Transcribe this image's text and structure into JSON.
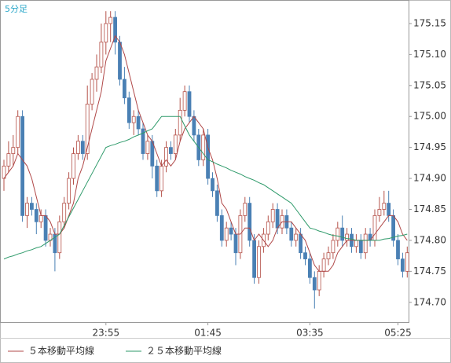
{
  "chart_data": {
    "type": "candlestick",
    "label": "5分足",
    "categories": [
      null,
      null,
      null,
      null,
      null,
      null,
      null,
      null,
      null,
      null,
      null,
      null,
      null,
      null,
      null,
      null,
      null,
      null,
      null,
      null,
      null,
      null,
      "23:55",
      null,
      null,
      null,
      null,
      null,
      null,
      null,
      null,
      null,
      null,
      null,
      null,
      null,
      null,
      null,
      null,
      null,
      null,
      null,
      null,
      null,
      "01:45",
      null,
      null,
      null,
      null,
      null,
      null,
      null,
      null,
      null,
      null,
      null,
      null,
      null,
      null,
      null,
      null,
      null,
      null,
      null,
      null,
      null,
      "03:35",
      null,
      null,
      null,
      null,
      null,
      null,
      null,
      null,
      null,
      null,
      null,
      null,
      null,
      null,
      null,
      null,
      null,
      null,
      "05:25",
      null,
      null
    ],
    "ohlc": [
      [
        174.9,
        174.93,
        174.88,
        174.92
      ],
      [
        174.92,
        174.96,
        174.91,
        174.94
      ],
      [
        174.94,
        174.97,
        174.92,
        174.95
      ],
      [
        174.95,
        175.01,
        174.94,
        175.0
      ],
      [
        175.0,
        175.01,
        174.83,
        174.84
      ],
      [
        174.84,
        174.87,
        174.82,
        174.86
      ],
      [
        174.86,
        174.87,
        174.84,
        174.85
      ],
      [
        174.85,
        174.86,
        174.81,
        174.83
      ],
      [
        174.83,
        174.85,
        174.82,
        174.84
      ],
      [
        174.84,
        174.85,
        174.79,
        174.8
      ],
      [
        174.8,
        174.82,
        174.79,
        174.81
      ],
      [
        174.81,
        174.82,
        174.75,
        174.78
      ],
      [
        174.78,
        174.84,
        174.77,
        174.83
      ],
      [
        174.83,
        174.87,
        174.82,
        174.86
      ],
      [
        174.86,
        174.91,
        174.85,
        174.9
      ],
      [
        174.9,
        174.95,
        174.89,
        174.94
      ],
      [
        174.94,
        174.97,
        174.93,
        174.96
      ],
      [
        174.96,
        174.97,
        174.93,
        174.94
      ],
      [
        174.94,
        175.05,
        174.93,
        175.02
      ],
      [
        175.02,
        175.07,
        175.01,
        175.06
      ],
      [
        175.06,
        175.1,
        175.04,
        175.08
      ],
      [
        175.08,
        175.15,
        175.07,
        175.12
      ],
      [
        175.12,
        175.17,
        175.1,
        175.15
      ],
      [
        175.15,
        175.17,
        175.12,
        175.16
      ],
      [
        175.16,
        175.17,
        175.1,
        175.12
      ],
      [
        175.12,
        175.13,
        175.05,
        175.06
      ],
      [
        175.06,
        175.08,
        175.02,
        175.03
      ],
      [
        175.03,
        175.04,
        174.98,
        174.99
      ],
      [
        174.99,
        175.01,
        174.97,
        175.0
      ],
      [
        175.0,
        175.01,
        174.97,
        174.98
      ],
      [
        174.98,
        174.99,
        174.93,
        174.94
      ],
      [
        174.94,
        174.97,
        174.93,
        174.96
      ],
      [
        174.96,
        174.97,
        174.9,
        174.92
      ],
      [
        174.92,
        174.93,
        174.87,
        174.88
      ],
      [
        174.88,
        174.93,
        174.87,
        174.92
      ],
      [
        174.92,
        174.96,
        174.91,
        174.95
      ],
      [
        174.95,
        174.96,
        174.93,
        174.94
      ],
      [
        174.94,
        174.98,
        174.93,
        174.97
      ],
      [
        174.97,
        175.03,
        174.96,
        175.01
      ],
      [
        175.01,
        175.05,
        175.0,
        175.04
      ],
      [
        175.04,
        175.05,
        174.99,
        175.0
      ],
      [
        175.0,
        175.01,
        174.96,
        174.97
      ],
      [
        174.97,
        174.98,
        174.92,
        174.93
      ],
      [
        174.93,
        174.98,
        174.92,
        174.97
      ],
      [
        174.97,
        174.98,
        174.89,
        174.9
      ],
      [
        174.9,
        174.91,
        174.87,
        174.88
      ],
      [
        174.88,
        174.89,
        174.83,
        174.84
      ],
      [
        174.84,
        174.85,
        174.79,
        174.8
      ],
      [
        174.8,
        174.83,
        174.79,
        174.82
      ],
      [
        174.82,
        174.83,
        174.8,
        174.81
      ],
      [
        174.81,
        174.82,
        174.76,
        174.78
      ],
      [
        174.78,
        174.85,
        174.77,
        174.84
      ],
      [
        174.84,
        174.87,
        174.83,
        174.86
      ],
      [
        174.86,
        174.87,
        174.79,
        174.8
      ],
      [
        174.8,
        174.81,
        174.73,
        174.74
      ],
      [
        174.74,
        174.8,
        174.73,
        174.79
      ],
      [
        174.79,
        174.82,
        174.78,
        174.81
      ],
      [
        174.81,
        174.84,
        174.8,
        174.83
      ],
      [
        174.83,
        174.86,
        174.82,
        174.85
      ],
      [
        174.85,
        174.86,
        174.81,
        174.82
      ],
      [
        174.82,
        174.85,
        174.81,
        174.84
      ],
      [
        174.84,
        174.85,
        174.81,
        174.82
      ],
      [
        174.82,
        174.83,
        174.79,
        174.8
      ],
      [
        174.8,
        174.82,
        174.79,
        174.81
      ],
      [
        174.81,
        174.82,
        174.77,
        174.78
      ],
      [
        174.78,
        174.79,
        174.76,
        174.77
      ],
      [
        174.77,
        174.78,
        174.73,
        174.74
      ],
      [
        174.74,
        174.75,
        174.69,
        174.72
      ],
      [
        174.72,
        174.76,
        174.71,
        174.75
      ],
      [
        174.75,
        174.78,
        174.74,
        174.77
      ],
      [
        174.77,
        174.79,
        174.76,
        174.78
      ],
      [
        174.78,
        174.81,
        174.77,
        174.8
      ],
      [
        174.8,
        174.83,
        174.79,
        174.82
      ],
      [
        174.82,
        174.84,
        174.79,
        174.8
      ],
      [
        174.8,
        174.82,
        174.79,
        174.81
      ],
      [
        174.81,
        174.82,
        174.78,
        174.79
      ],
      [
        174.79,
        174.81,
        174.78,
        174.8
      ],
      [
        174.8,
        174.81,
        174.77,
        174.78
      ],
      [
        174.78,
        174.82,
        174.77,
        174.81
      ],
      [
        174.81,
        174.82,
        174.79,
        174.8
      ],
      [
        174.8,
        174.85,
        174.79,
        174.84
      ],
      [
        174.84,
        174.87,
        174.83,
        174.85
      ],
      [
        174.85,
        174.88,
        174.84,
        174.86
      ],
      [
        174.86,
        174.88,
        174.83,
        174.84
      ],
      [
        174.84,
        174.85,
        174.79,
        174.8
      ],
      [
        174.8,
        174.81,
        174.76,
        174.77
      ],
      [
        174.77,
        174.78,
        174.74,
        174.75
      ],
      [
        174.75,
        174.79,
        174.74,
        174.78
      ]
    ],
    "up_color": "#b5524a",
    "down_color": "#4a80b4",
    "series": [
      {
        "name": "５本移動平均線",
        "color": "#b04848",
        "values": [
          174.9,
          174.91,
          174.92,
          174.94,
          174.93,
          174.92,
          174.9,
          174.87,
          174.84,
          174.84,
          174.83,
          174.81,
          174.81,
          174.82,
          174.84,
          174.86,
          174.9,
          174.92,
          174.95,
          174.98,
          175.01,
          175.04,
          175.09,
          175.11,
          175.13,
          175.12,
          175.1,
          175.07,
          175.04,
          175.01,
          174.99,
          174.97,
          174.96,
          174.94,
          174.92,
          174.93,
          174.92,
          174.93,
          174.96,
          174.98,
          174.99,
          175.0,
          174.99,
          174.98,
          174.95,
          174.93,
          174.9,
          174.86,
          174.85,
          174.83,
          174.81,
          174.81,
          174.82,
          174.82,
          174.8,
          174.81,
          174.8,
          174.79,
          174.8,
          174.82,
          174.83,
          174.83,
          174.83,
          174.82,
          174.81,
          174.8,
          174.78,
          174.76,
          174.75,
          174.75,
          174.75,
          174.76,
          174.78,
          174.79,
          174.8,
          174.8,
          174.8,
          174.8,
          174.8,
          174.8,
          174.81,
          174.82,
          174.83,
          174.84,
          174.84,
          174.83,
          174.81,
          174.8
        ]
      },
      {
        "name": "２５本移動平均線",
        "color": "#2e9a6a",
        "values": [
          174.77,
          174.773,
          174.775,
          174.778,
          174.78,
          174.783,
          174.785,
          174.788,
          174.79,
          174.795,
          174.8,
          174.805,
          174.81,
          174.824,
          174.838,
          174.852,
          174.866,
          174.88,
          174.894,
          174.908,
          174.922,
          174.936,
          174.95,
          174.953,
          174.955,
          174.958,
          174.96,
          174.963,
          174.967,
          174.97,
          174.973,
          174.977,
          174.98,
          174.99,
          175.0,
          175.0,
          175.0,
          175.0,
          175.0,
          174.985,
          174.97,
          174.96,
          174.95,
          174.94,
          174.93,
          174.927,
          174.923,
          174.92,
          174.917,
          174.913,
          174.91,
          174.907,
          174.903,
          174.9,
          174.897,
          174.893,
          174.89,
          174.885,
          174.88,
          174.875,
          174.87,
          174.865,
          174.86,
          174.85,
          174.84,
          174.83,
          174.82,
          174.818,
          174.815,
          174.813,
          174.81,
          174.808,
          174.807,
          174.805,
          174.803,
          174.802,
          174.8,
          174.8,
          174.8,
          174.8,
          174.8,
          174.8,
          174.802,
          174.803,
          174.805,
          174.807,
          174.808,
          174.81
        ]
      }
    ],
    "ylim": [
      174.668,
      175.188
    ],
    "yticks": [
      {
        "value": 174.7,
        "label": "174.70"
      },
      174.75,
      {
        "value": 174.8,
        "label": "174.80"
      },
      174.85,
      {
        "value": 174.9,
        "label": "174.90"
      },
      174.95,
      {
        "value": 175.0,
        "label": "175.00"
      },
      175.05,
      {
        "value": 175.1,
        "label": "175.10"
      },
      175.15
    ]
  }
}
